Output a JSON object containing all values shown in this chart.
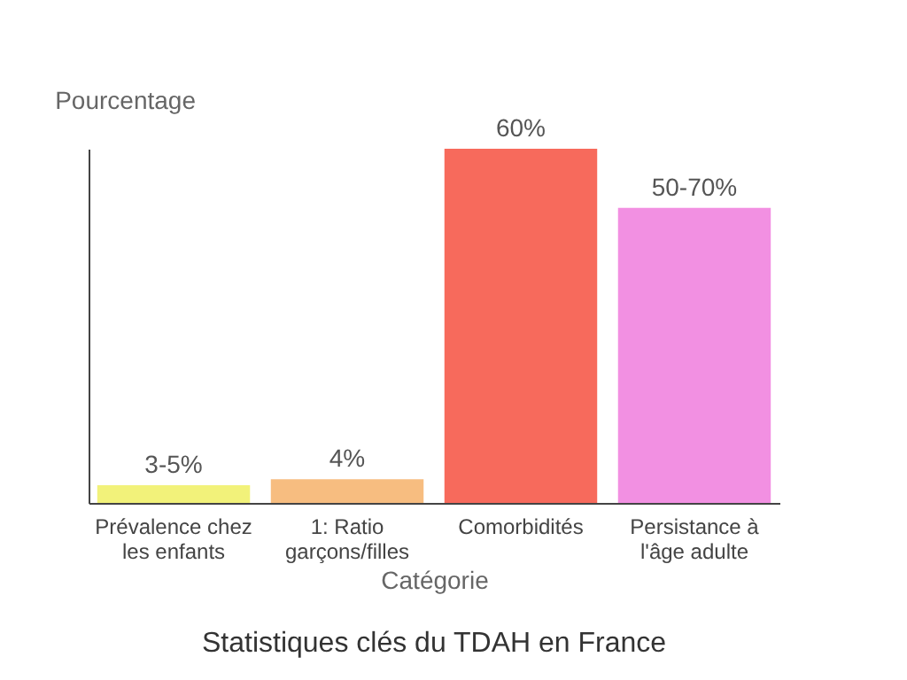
{
  "chart_data": {
    "type": "bar",
    "title": "Statistiques clés du TDAH en France",
    "xlabel": "Catégorie",
    "ylabel": "Pourcentage",
    "categories": [
      "Prévalence chez les enfants",
      "1: Ratio garçons/filles",
      "Comorbidités",
      "Persistance à l'âge adulte"
    ],
    "values": [
      3,
      4,
      60,
      50
    ],
    "colors": [
      "#f2f27a",
      "#f7bd80",
      "#f76a5c",
      "#f290e2"
    ],
    "value_labels": [
      "3-5%",
      "4%",
      "60%",
      "50-70%"
    ],
    "grid": false
  }
}
